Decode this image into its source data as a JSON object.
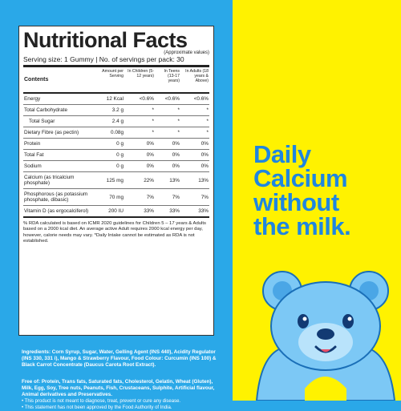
{
  "panel": {
    "title": "Nutritional Facts",
    "approx": "(Approximate values)",
    "serving": "Serving size: 1 Gummy | No. of servings per pack: 30",
    "columns": {
      "contents": "Contents",
      "per_serving": "Amount per Serving",
      "children": "In Children (5-12 years)",
      "teens": "In Teens (13-17 years)",
      "adults": "In Adults (18 years & Above)"
    },
    "rows": [
      {
        "name": "Energy",
        "amount": "12 Kcal",
        "children": "<0.6%",
        "teens": "<0.6%",
        "adults": "<0.6%"
      },
      {
        "name": "Total Carbohydrate",
        "amount": "3.2 g",
        "children": "*",
        "teens": "*",
        "adults": "*"
      },
      {
        "name": "Total Sugar",
        "amount": "2.4 g",
        "children": "*",
        "teens": "*",
        "adults": "*"
      },
      {
        "name": "Dietary Fibre (as pectin)",
        "amount": "0.08g",
        "children": "*",
        "teens": "*",
        "adults": "*"
      },
      {
        "name": "Protein",
        "amount": "0 g",
        "children": "0%",
        "teens": "0%",
        "adults": "0%"
      },
      {
        "name": "Total Fat",
        "amount": "0 g",
        "children": "0%",
        "teens": "0%",
        "adults": "0%"
      },
      {
        "name": "Sodium",
        "amount": "0 g",
        "children": "0%",
        "teens": "0%",
        "adults": "0%"
      },
      {
        "name": "Calcium (as tricalcium phosphate)",
        "amount": "125 mg",
        "children": "22%",
        "teens": "13%",
        "adults": "13%"
      },
      {
        "name": "Phosphorous (as potassium phosphate, dibasic)",
        "amount": "70 mg",
        "children": "7%",
        "teens": "7%",
        "adults": "7%"
      },
      {
        "name": "Vitamin D (as ergocalciferol)",
        "amount": "200 IU",
        "children": "33%",
        "teens": "33%",
        "adults": "33%"
      }
    ],
    "note": "% RDA calculated is based on ICMR 2020 guidelines for Children 5 – 17 years & Adults based on a 2000 kcal diet. An average active Adult requires 2000 kcal energy per day, however, calorie needs may vary. *Daily Intake cannot be estimated as RDA is not established."
  },
  "ingredients": {
    "label": "Ingredients:",
    "text": "Corn Syrup, Sugar, Water, Gelling Agent (INS 440), Acidity Regulator (INS 330, 331 i), Mango & Strawberry Flavour, Food Colour: Curcumin (INS 100) & Black Carrot Concentrate (Daucus Carota Root Extract)."
  },
  "free_of": {
    "label": "Free of:",
    "text": "Protein, Trans fats, Saturated fats, Cholesterol, Gelatin, Wheat (Gluten), Milk, Egg, Soy, Tree nuts, Peanuts, Fish, Crustaceans, Sulphite, Artificial flavour, Animal derivatives and Preservatives."
  },
  "disclaimers": [
    "• This product is not meant to diagnose, treat, prevent or cure any disease.",
    "• This statement has not been approved by the Food Authority of India."
  ],
  "headline": [
    "Daily",
    "Calcium",
    "without",
    "the milk."
  ],
  "colors": {
    "left_bg": "#2aa8e8",
    "right_bg": "#fff200",
    "headline": "#1f86e0"
  }
}
